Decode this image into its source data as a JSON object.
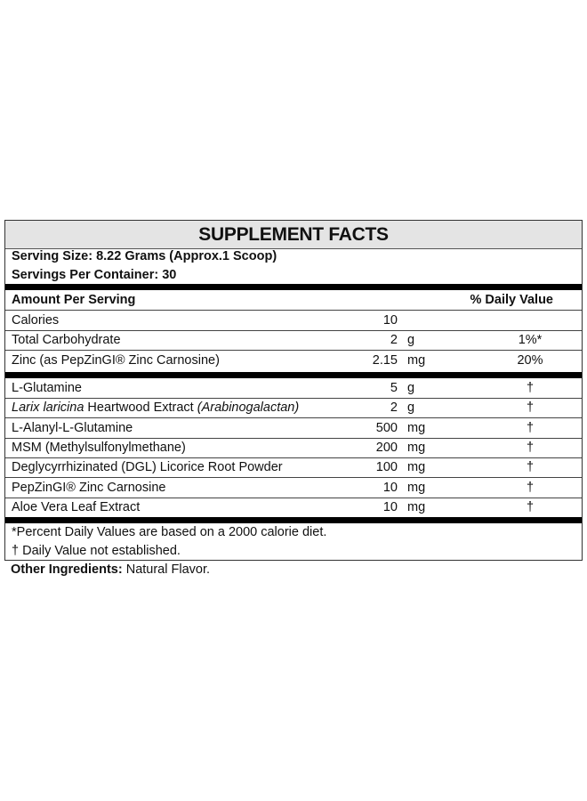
{
  "title": "SUPPLEMENT FACTS",
  "serving_size": "Serving Size: 8.22 Grams (Approx.1 Scoop)",
  "servings_per_container": "Servings Per Container: 30",
  "header": {
    "amount": "Amount Per Serving",
    "dv": "% Daily Value"
  },
  "group1": [
    {
      "name": "Calories",
      "amount": "10",
      "unit": "",
      "dv": ""
    },
    {
      "name": "Total Carbohydrate",
      "amount": "2",
      "unit": "g",
      "dv": "1%*"
    },
    {
      "name": "Zinc (as PepZinGI® Zinc Carnosine)",
      "amount": "2.15",
      "unit": "mg",
      "dv": "20%"
    }
  ],
  "group2": [
    {
      "name": "L-Glutamine",
      "amount": "5",
      "unit": "g",
      "dv": "†"
    },
    {
      "name_italic_1": "Larix laricina",
      "name_mid": " Heartwood Extract ",
      "name_italic_2": "(Arabinogalactan)",
      "amount": "2",
      "unit": "g",
      "dv": "†"
    },
    {
      "name": "L-Alanyl-L-Glutamine",
      "amount": "500",
      "unit": "mg",
      "dv": "†"
    },
    {
      "name": "MSM (Methylsulfonylmethane)",
      "amount": "200",
      "unit": "mg",
      "dv": "†"
    },
    {
      "name": "Deglycyrrhizinated (DGL) Licorice Root Powder",
      "amount": "100",
      "unit": "mg",
      "dv": "†"
    },
    {
      "name": "PepZinGI® Zinc Carnosine",
      "amount": "10",
      "unit": "mg",
      "dv": "†"
    },
    {
      "name": "Aloe Vera Leaf Extract",
      "amount": "10",
      "unit": "mg",
      "dv": "†"
    }
  ],
  "footnotes": [
    "*Percent Daily Values are based on a 2000 calorie diet.",
    "† Daily Value not established."
  ],
  "other_ingredients": {
    "label": "Other Ingredients:",
    "value": " Natural Flavor."
  }
}
